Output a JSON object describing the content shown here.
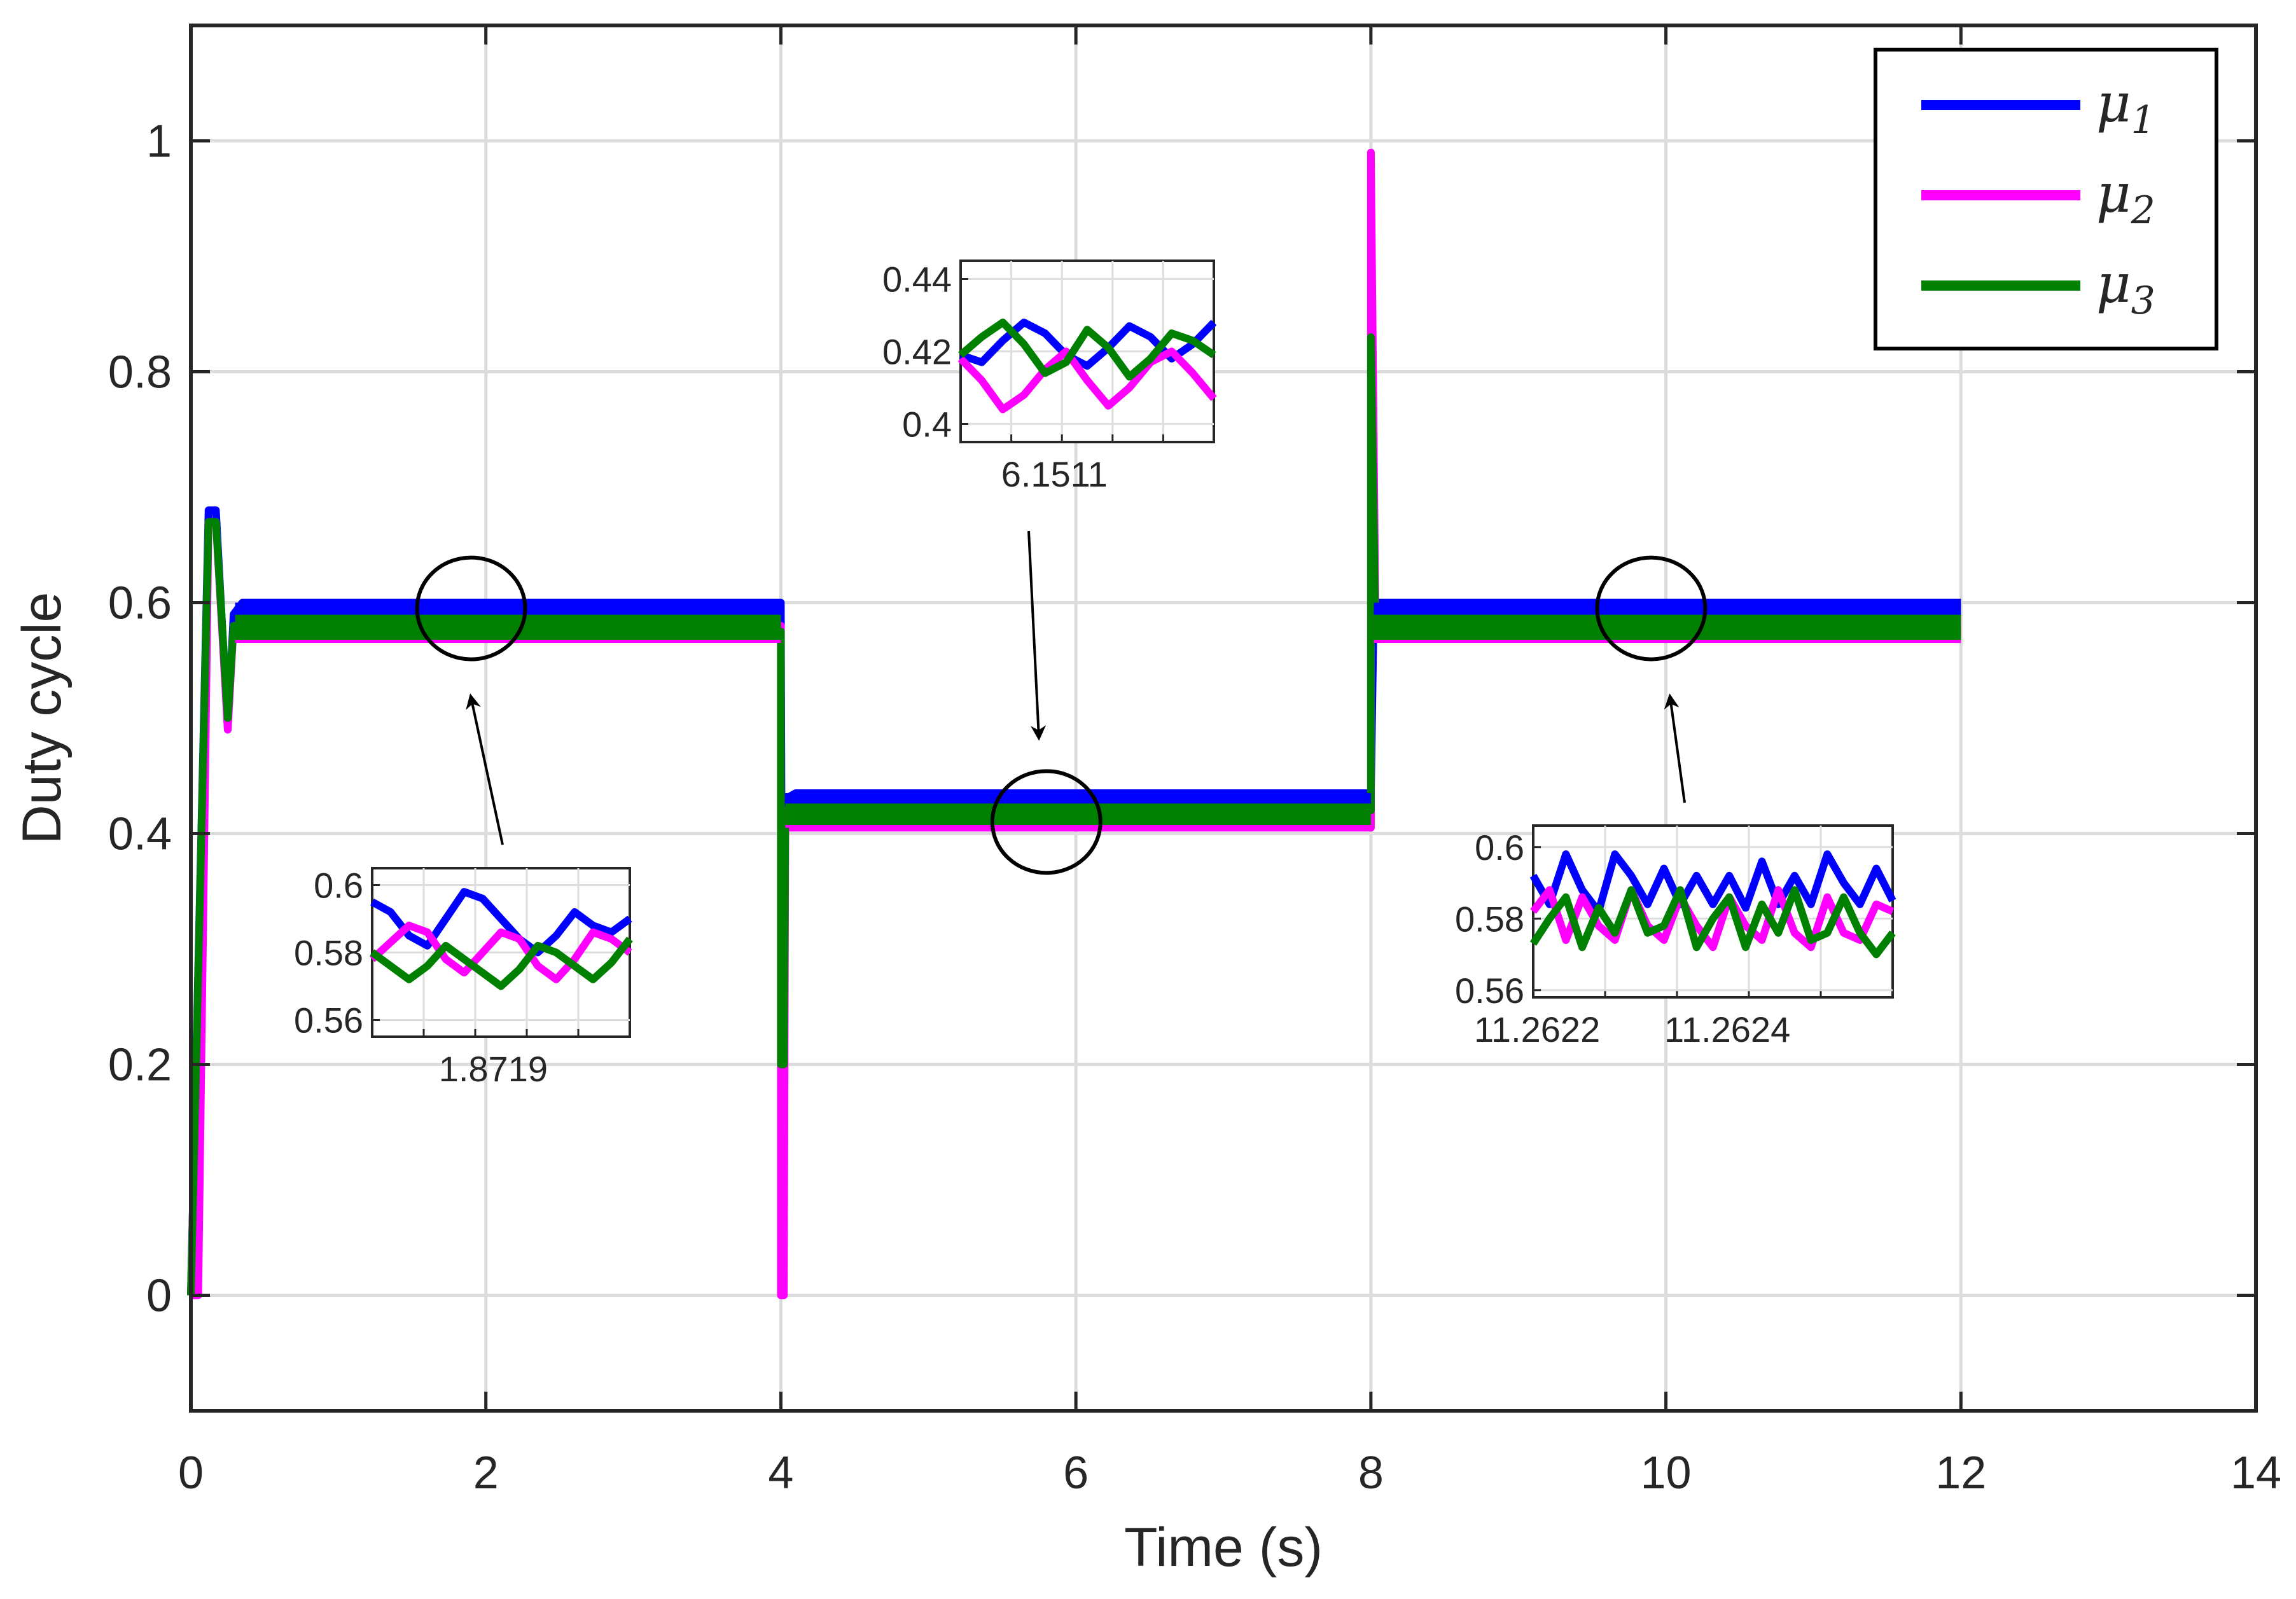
{
  "chart_data": {
    "type": "line",
    "title": "",
    "xlabel": "Time (s)",
    "ylabel": "Duty cycle",
    "xlim": [
      0,
      14
    ],
    "ylim": [
      -0.1,
      1.1
    ],
    "xticks": [
      0,
      2,
      4,
      6,
      8,
      10,
      12,
      14
    ],
    "xtick_labels": [
      "0",
      "2",
      "4",
      "6",
      "8",
      "10",
      "12",
      "14"
    ],
    "yticks": [
      0,
      0.2,
      0.4,
      0.6,
      0.8,
      1
    ],
    "ytick_labels": [
      "0",
      "0.2",
      "0.4",
      "0.6",
      "0.8",
      "1"
    ],
    "grid": true,
    "legend_placement": "top-right",
    "series": [
      {
        "name": "μ1",
        "legend_base": "μ",
        "legend_sub": "1",
        "color": "#0000ff",
        "points": [
          [
            0,
            0
          ],
          [
            0.12,
            0.68
          ],
          [
            0.17,
            0.68
          ],
          [
            0.25,
            0.49
          ],
          [
            0.29,
            0.59
          ],
          [
            0.35,
            0.6
          ],
          [
            4,
            0.6
          ],
          [
            4.01,
            0.2
          ],
          [
            4.03,
            0.43
          ],
          [
            4.1,
            0.435
          ],
          [
            8,
            0.435
          ],
          [
            8.02,
            0.6
          ],
          [
            12,
            0.6
          ]
        ]
      },
      {
        "name": "μ2",
        "legend_base": "μ",
        "legend_sub": "2",
        "color": "#ff00ff",
        "points": [
          [
            0,
            0
          ],
          [
            0.05,
            0.0
          ],
          [
            0.12,
            0.67
          ],
          [
            0.17,
            0.67
          ],
          [
            0.25,
            0.49
          ],
          [
            0.29,
            0.58
          ],
          [
            0.35,
            0.58
          ],
          [
            4,
            0.58
          ],
          [
            4.0,
            0.0
          ],
          [
            4.02,
            0.0
          ],
          [
            4.03,
            0.405
          ],
          [
            8,
            0.405
          ],
          [
            8.0,
            0.99
          ],
          [
            8.03,
            0.6
          ],
          [
            8.06,
            0.58
          ],
          [
            12,
            0.58
          ]
        ]
      },
      {
        "name": "μ3",
        "legend_base": "μ",
        "legend_sub": "3",
        "color": "#008000",
        "points": [
          [
            0,
            0
          ],
          [
            0.12,
            0.67
          ],
          [
            0.17,
            0.67
          ],
          [
            0.25,
            0.5
          ],
          [
            0.29,
            0.58
          ],
          [
            0.35,
            0.575
          ],
          [
            4,
            0.575
          ],
          [
            4.0,
            0.2
          ],
          [
            4.02,
            0.2
          ],
          [
            4.03,
            0.42
          ],
          [
            8,
            0.42
          ],
          [
            8.0,
            0.83
          ],
          [
            8.03,
            0.58
          ],
          [
            8.06,
            0.575
          ],
          [
            12,
            0.575
          ]
        ]
      }
    ],
    "band": {
      "segments": [
        {
          "x0": 0.3,
          "x1": 4.0,
          "ymin": 0.565,
          "ymax": 0.6
        },
        {
          "x0": 4.03,
          "x1": 8.0,
          "ymin": 0.405,
          "ymax": 0.435
        },
        {
          "x0": 8.02,
          "x1": 12.0,
          "ymin": 0.565,
          "ymax": 0.6
        }
      ]
    },
    "zoom_circles": [
      {
        "x": 1.9,
        "y": 0.595
      },
      {
        "x": 5.8,
        "y": 0.41
      },
      {
        "x": 9.9,
        "y": 0.595
      }
    ],
    "insets": [
      {
        "name": "inset-1",
        "center_label": "1.8719",
        "ylim": [
          0.555,
          0.605
        ],
        "yticks": [
          0.56,
          0.58,
          0.6
        ],
        "ytick_labels": [
          "0.56",
          "0.58",
          "0.6"
        ],
        "xtick_labels": [
          "1.8719"
        ],
        "series": [
          {
            "name": "μ1",
            "color": "#0000ff",
            "y": [
              0.595,
              0.592,
              0.585,
              0.582,
              0.59,
              0.598,
              0.596,
              0.59,
              0.584,
              0.58,
              0.585,
              0.592,
              0.588,
              0.586,
              0.59
            ]
          },
          {
            "name": "μ2",
            "color": "#ff00ff",
            "y": [
              0.578,
              0.583,
              0.588,
              0.586,
              0.578,
              0.574,
              0.58,
              0.586,
              0.584,
              0.576,
              0.572,
              0.578,
              0.586,
              0.584,
              0.58
            ]
          },
          {
            "name": "μ3",
            "color": "#008000",
            "y": [
              0.58,
              0.576,
              0.572,
              0.576,
              0.582,
              0.578,
              0.574,
              0.57,
              0.575,
              0.582,
              0.58,
              0.576,
              0.572,
              0.577,
              0.584
            ]
          }
        ]
      },
      {
        "name": "inset-2",
        "center_label": "6.1511",
        "ylim": [
          0.395,
          0.445
        ],
        "yticks": [
          0.4,
          0.42,
          0.44
        ],
        "ytick_labels": [
          "0.4",
          "0.42",
          "0.44"
        ],
        "xtick_labels": [
          "6.1511"
        ],
        "series": [
          {
            "name": "μ1",
            "color": "#0000ff",
            "y": [
              0.419,
              0.417,
              0.423,
              0.428,
              0.425,
              0.419,
              0.416,
              0.421,
              0.427,
              0.424,
              0.418,
              0.422,
              0.428
            ]
          },
          {
            "name": "μ2",
            "color": "#ff00ff",
            "y": [
              0.418,
              0.412,
              0.404,
              0.408,
              0.415,
              0.42,
              0.412,
              0.405,
              0.41,
              0.417,
              0.42,
              0.414,
              0.407
            ]
          },
          {
            "name": "μ3",
            "color": "#008000",
            "y": [
              0.419,
              0.424,
              0.428,
              0.422,
              0.414,
              0.417,
              0.426,
              0.421,
              0.413,
              0.418,
              0.425,
              0.423,
              0.419
            ]
          }
        ]
      },
      {
        "name": "inset-3",
        "center_label": "",
        "ylim": [
          0.558,
          0.606
        ],
        "yticks": [
          0.56,
          0.58,
          0.6
        ],
        "ytick_labels": [
          "0.56",
          "0.58",
          "0.6"
        ],
        "xtick_labels": [
          "11.2622",
          "11.2624"
        ],
        "series": [
          {
            "name": "μ1",
            "color": "#0000ff",
            "y": [
              0.592,
              0.584,
              0.598,
              0.588,
              0.582,
              0.598,
              0.592,
              0.584,
              0.594,
              0.584,
              0.592,
              0.584,
              0.592,
              0.583,
              0.596,
              0.584,
              0.592,
              0.584,
              0.598,
              0.59,
              0.584,
              0.594,
              0.585
            ]
          },
          {
            "name": "μ2",
            "color": "#ff00ff",
            "y": [
              0.582,
              0.588,
              0.574,
              0.586,
              0.578,
              0.574,
              0.588,
              0.578,
              0.574,
              0.586,
              0.578,
              0.572,
              0.586,
              0.578,
              0.574,
              0.588,
              0.576,
              0.572,
              0.586,
              0.576,
              0.574,
              0.584,
              0.582
            ]
          },
          {
            "name": "μ3",
            "color": "#008000",
            "y": [
              0.573,
              0.58,
              0.586,
              0.572,
              0.583,
              0.576,
              0.588,
              0.576,
              0.578,
              0.588,
              0.572,
              0.58,
              0.586,
              0.572,
              0.584,
              0.576,
              0.588,
              0.574,
              0.576,
              0.586,
              0.576,
              0.57,
              0.576
            ]
          }
        ]
      }
    ]
  }
}
